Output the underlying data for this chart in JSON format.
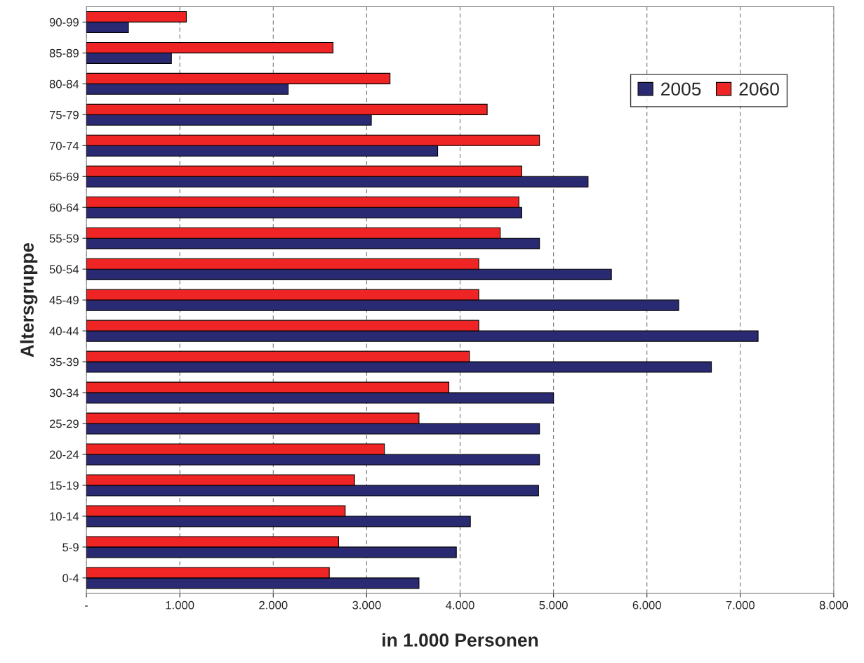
{
  "chart_data": {
    "type": "bar",
    "orientation": "horizontal",
    "xlabel": "in 1.000 Personen",
    "ylabel": "Altersgruppe",
    "categories": [
      "90-99",
      "85-89",
      "80-84",
      "75-79",
      "70-74",
      "65-69",
      "60-64",
      "55-59",
      "50-54",
      "45-49",
      "40-44",
      "35-39",
      "30-34",
      "25-29",
      "20-24",
      "15-19",
      "10-14",
      "5-9",
      "0-4"
    ],
    "series": [
      {
        "name": "2005",
        "color": "#2a2a72",
        "values": [
          450,
          910,
          2160,
          3050,
          3760,
          5370,
          4660,
          4850,
          5620,
          6340,
          7190,
          6690,
          5000,
          4850,
          4850,
          4840,
          4110,
          3960,
          3560
        ]
      },
      {
        "name": "2060",
        "color": "#ee2524",
        "values": [
          1070,
          2640,
          3250,
          4290,
          4850,
          4660,
          4630,
          4430,
          4200,
          4200,
          4200,
          4100,
          3880,
          3560,
          3190,
          2870,
          2770,
          2700,
          2600
        ]
      }
    ],
    "xlim": [
      0,
      8000
    ],
    "xticks": [
      {
        "value": 0,
        "label": "-"
      },
      {
        "value": 1000,
        "label": "1.000"
      },
      {
        "value": 2000,
        "label": "2.000"
      },
      {
        "value": 3000,
        "label": "3.000"
      },
      {
        "value": 4000,
        "label": "4.000"
      },
      {
        "value": 5000,
        "label": "5.000"
      },
      {
        "value": 6000,
        "label": "6.000"
      },
      {
        "value": 7000,
        "label": "7.000"
      },
      {
        "value": 8000,
        "label": "8.000"
      }
    ],
    "grid": "x",
    "legend": "top right"
  }
}
